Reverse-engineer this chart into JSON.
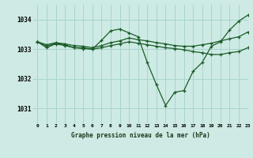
{
  "title": "Graphe pression niveau de la mer (hPa)",
  "bg_color": "#ceeae4",
  "grid_color": "#a8d5cc",
  "line_color": "#1a5c28",
  "xlim": [
    -0.5,
    23
  ],
  "ylim": [
    1030.5,
    1034.5
  ],
  "yticks": [
    1031,
    1032,
    1033,
    1034
  ],
  "xtick_labels": [
    "0",
    "1",
    "2",
    "3",
    "4",
    "5",
    "6",
    "7",
    "8",
    "9",
    "10",
    "11",
    "12",
    "13",
    "14",
    "15",
    "16",
    "17",
    "18",
    "19",
    "20",
    "21",
    "22",
    "23"
  ],
  "series": [
    {
      "x": [
        0,
        1,
        2,
        3,
        4,
        5,
        6,
        7,
        8,
        9,
        10,
        11,
        12,
        13,
        14,
        15,
        16,
        17,
        18,
        19,
        20,
        21,
        22,
        23
      ],
      "y": [
        1033.25,
        1033.1,
        1033.2,
        1033.15,
        1033.05,
        1033.05,
        1033.0,
        1033.3,
        1033.62,
        1033.68,
        1033.55,
        1033.42,
        1032.55,
        1031.8,
        1031.1,
        1031.55,
        1031.6,
        1032.25,
        1032.55,
        1033.1,
        1033.25,
        1033.65,
        1033.95,
        1034.15
      ]
    },
    {
      "x": [
        0,
        1,
        2,
        3,
        4,
        5,
        6,
        7,
        8,
        9,
        10,
        11,
        12,
        13,
        14,
        15,
        16,
        17,
        18,
        19,
        20,
        21,
        22,
        23
      ],
      "y": [
        1033.25,
        1033.05,
        1033.18,
        1033.12,
        1033.05,
        1033.02,
        1033.0,
        1033.05,
        1033.12,
        1033.18,
        1033.25,
        1033.2,
        1033.15,
        1033.1,
        1033.05,
        1033.02,
        1032.98,
        1032.92,
        1032.88,
        1032.82,
        1032.82,
        1032.88,
        1032.92,
        1033.05
      ]
    },
    {
      "x": [
        0,
        1,
        2,
        3,
        4,
        5,
        6,
        7,
        8,
        9,
        10,
        11,
        12,
        13,
        14,
        15,
        16,
        17,
        18,
        19,
        20,
        21,
        22,
        23
      ],
      "y": [
        1033.25,
        1033.15,
        1033.22,
        1033.18,
        1033.12,
        1033.1,
        1033.05,
        1033.12,
        1033.22,
        1033.28,
        1033.38,
        1033.32,
        1033.28,
        1033.22,
        1033.18,
        1033.12,
        1033.1,
        1033.1,
        1033.15,
        1033.2,
        1033.28,
        1033.35,
        1033.42,
        1033.58
      ]
    }
  ]
}
